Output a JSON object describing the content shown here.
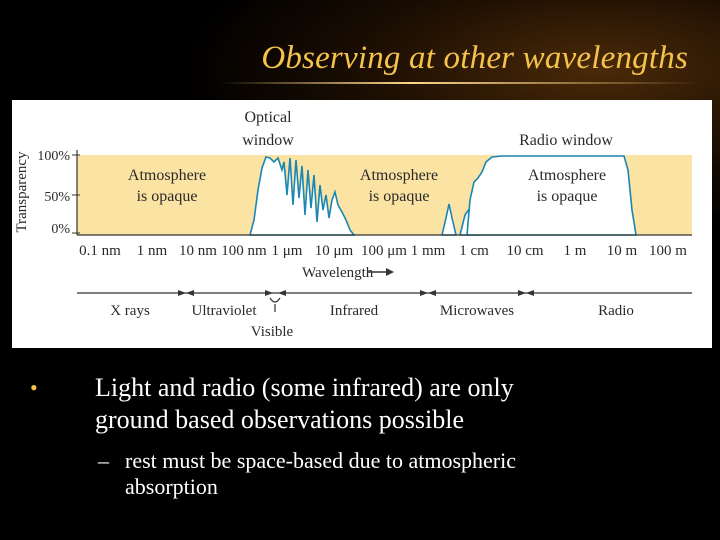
{
  "slide": {
    "title": "Observing at other wavelengths"
  },
  "diagram": {
    "y_axis_title": "Transparency",
    "y_ticks": [
      "100%",
      "50%",
      "0%"
    ],
    "window_labels": {
      "optical_line1": "Optical",
      "optical_line2": "window",
      "radio": "Radio window"
    },
    "opaque_labels": [
      {
        "line1": "Atmosphere",
        "line2": "is opaque"
      },
      {
        "line1": "Atmosphere",
        "line2": "is opaque"
      },
      {
        "line1": "Atmosphere",
        "line2": "is opaque"
      }
    ],
    "x_ticks": [
      "0.1 nm",
      "1 nm",
      "10 nm",
      "100 nm",
      "1 μm",
      "10 μm",
      "100 μm",
      "1 mm",
      "1 cm",
      "10 cm",
      "1 m",
      "10 m",
      "100 m"
    ],
    "x_axis_title": "Wavelength",
    "bands": [
      "X rays",
      "Ultraviolet",
      "Infrared",
      "Microwaves",
      "Radio"
    ],
    "visible_label": "Visible",
    "colors": {
      "opaque_band": "#fbe3a4",
      "window_fill": "#ffffff",
      "curve": "#1a86b4"
    }
  },
  "bullets": {
    "main_line1": "Light and radio (some infrared) are only",
    "main_line2": "ground based observations possible",
    "sub_line1": "rest must be space-based due to atmospheric",
    "sub_line2": "absorption"
  }
}
